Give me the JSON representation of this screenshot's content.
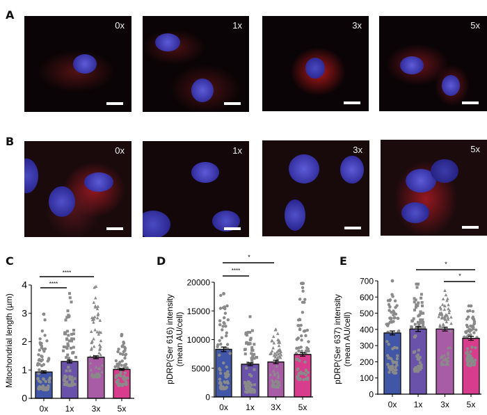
{
  "figure": {
    "panels": {
      "A": {
        "letter": "A",
        "labels": [
          "0x",
          "1x",
          "3x",
          "5x"
        ]
      },
      "B": {
        "letter": "B",
        "labels": [
          "0x",
          "1x",
          "3x",
          "5x"
        ]
      },
      "C": {
        "letter": "C"
      },
      "D": {
        "letter": "D"
      },
      "E": {
        "letter": "E"
      }
    },
    "colors": {
      "0x": "#4156a6",
      "1x": "#6a52aa",
      "3x": "#a95ca6",
      "5x": "#d83c8c",
      "points": "#8a8a8a"
    }
  },
  "chart_data": [
    {
      "panel": "C",
      "type": "bar",
      "title": "",
      "xlabel": "",
      "ylabel": "Mitochondrial length (µm)",
      "categories": [
        "0x",
        "1x",
        "3x",
        "5x"
      ],
      "values": [
        0.93,
        1.3,
        1.45,
        1.02
      ],
      "sem": [
        0.04,
        0.05,
        0.05,
        0.03
      ],
      "point_range": [
        [
          0.3,
          2.97
        ],
        [
          0.45,
          3.7
        ],
        [
          0.75,
          3.95
        ],
        [
          0.45,
          2.25
        ]
      ],
      "ylim": [
        0,
        4
      ],
      "yticks": [
        0,
        1,
        2,
        3,
        4
      ],
      "grid": false,
      "significance": [
        {
          "from": "0x",
          "to": "1x",
          "label": "****"
        },
        {
          "from": "0x",
          "to": "3x",
          "label": "****"
        }
      ]
    },
    {
      "panel": "D",
      "type": "bar",
      "title": "",
      "xlabel": "",
      "ylabel": "pDRP(Ser 616) intensity (mean AU/cell)",
      "categories": [
        "0x",
        "1x",
        "3X",
        "5x"
      ],
      "values": [
        8300,
        5700,
        6100,
        7400
      ],
      "sem": [
        400,
        250,
        300,
        300
      ],
      "point_range": [
        [
          1400,
          18000
        ],
        [
          800,
          14000
        ],
        [
          1700,
          11800
        ],
        [
          3000,
          19800
        ]
      ],
      "ylim": [
        0,
        20000
      ],
      "yticks": [
        0,
        5000,
        10000,
        15000,
        20000
      ],
      "grid": false,
      "significance": [
        {
          "from": "0x",
          "to": "1x",
          "label": "****"
        },
        {
          "from": "0x",
          "to": "3X",
          "label": "*"
        }
      ]
    },
    {
      "panel": "E",
      "type": "bar",
      "title": "",
      "xlabel": "",
      "ylabel": "pDRP(Ser 637) intensity (mean AU/cell)",
      "categories": [
        "0x",
        "1x",
        "3x",
        "5x"
      ],
      "values": [
        378,
        402,
        402,
        345
      ],
      "sem": [
        12,
        15,
        12,
        12
      ],
      "point_range": [
        [
          130,
          700
        ],
        [
          140,
          680
        ],
        [
          180,
          640
        ],
        [
          175,
          545
        ]
      ],
      "ylim": [
        0,
        700
      ],
      "yticks": [
        0,
        100,
        200,
        300,
        400,
        500,
        600,
        700
      ],
      "grid": false,
      "significance": [
        {
          "from": "1x",
          "to": "5x",
          "label": "*"
        },
        {
          "from": "3x",
          "to": "5x",
          "label": "*"
        }
      ]
    }
  ],
  "charts_text": {
    "C": {
      "ylabel": "Mitochondrial length (µm)",
      "yticks": [
        "0",
        "1",
        "2",
        "3",
        "4"
      ],
      "xticks": [
        "0x",
        "1x",
        "3x",
        "5x"
      ],
      "sig": [
        "****",
        "****"
      ]
    },
    "D": {
      "ylabel1": "pDRP(Ser 616) intensity",
      "ylabel2": "(mean AU/cell)",
      "yticks": [
        "0",
        "5000",
        "10000",
        "15000",
        "20000"
      ],
      "xticks": [
        "0x",
        "1x",
        "3X",
        "5x"
      ],
      "sig": [
        "*",
        "****"
      ]
    },
    "E": {
      "ylabel1": "pDRP(Ser 637) intensity",
      "ylabel2": "(mean AU/cell)",
      "yticks": [
        "0",
        "100",
        "200",
        "300",
        "400",
        "500",
        "600",
        "700"
      ],
      "xticks": [
        "0x",
        "1x",
        "3x",
        "5x"
      ],
      "sig": [
        "*",
        "*"
      ]
    }
  }
}
